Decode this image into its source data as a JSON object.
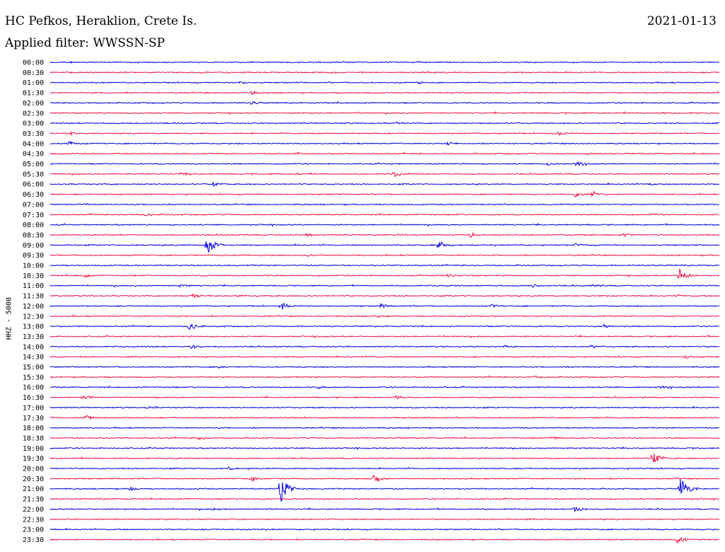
{
  "header": {
    "station": "HC Pefkos, Heraklion, Crete Is.",
    "date": "2021-01-13",
    "filter": "Applied filter: WWSSN-SP"
  },
  "channel_label": "HHZ - 5000",
  "colors": {
    "even_trace": "#0000dd",
    "odd_trace": "#ee1144"
  },
  "chart_data": {
    "type": "line",
    "title": "HC Pefkos, Heraklion, Crete Is.",
    "xlabel": "",
    "ylabel": "HHZ - 5000",
    "grid": false,
    "legend": "none",
    "row_labels": [
      "00:00",
      "00:30",
      "01:00",
      "01:30",
      "02:00",
      "02:30",
      "03:00",
      "03:30",
      "04:00",
      "04:30",
      "05:00",
      "05:30",
      "06:00",
      "06:30",
      "07:00",
      "07:30",
      "08:00",
      "08:30",
      "09:00",
      "09:30",
      "10:00",
      "10:30",
      "11:00",
      "11:30",
      "12:00",
      "12:30",
      "13:00",
      "13:30",
      "14:00",
      "14:30",
      "15:00",
      "15:30",
      "16:00",
      "16:30",
      "17:00",
      "17:30",
      "18:00",
      "18:30",
      "19:00",
      "19:30",
      "20:00",
      "20:30",
      "21:00",
      "21:30",
      "22:00",
      "22:30",
      "23:00",
      "23:30"
    ],
    "row_minutes": 30,
    "events": [
      {
        "row": "00:00",
        "minute": 0.8,
        "amp": 0.15
      },
      {
        "row": "01:00",
        "minute": 8.5,
        "amp": 0.25
      },
      {
        "row": "01:00",
        "minute": 16.5,
        "amp": 0.3
      },
      {
        "row": "01:30",
        "minute": 9.0,
        "amp": 0.35
      },
      {
        "row": "02:00",
        "minute": 9.0,
        "amp": 0.4
      },
      {
        "row": "02:30",
        "minute": 27.5,
        "amp": 0.25
      },
      {
        "row": "03:00",
        "minute": 15.5,
        "amp": 0.25
      },
      {
        "row": "03:30",
        "minute": 0.9,
        "amp": 0.45
      },
      {
        "row": "03:30",
        "minute": 22.8,
        "amp": 0.5
      },
      {
        "row": "04:00",
        "minute": 0.8,
        "amp": 0.5
      },
      {
        "row": "04:00",
        "minute": 17.8,
        "amp": 0.4
      },
      {
        "row": "04:30",
        "minute": 11.0,
        "amp": 0.3
      },
      {
        "row": "04:30",
        "minute": 24.0,
        "amp": 0.25
      },
      {
        "row": "05:00",
        "minute": 22.3,
        "amp": 0.45
      },
      {
        "row": "05:00",
        "minute": 23.6,
        "amp": 0.6
      },
      {
        "row": "05:30",
        "minute": 5.9,
        "amp": 0.45
      },
      {
        "row": "05:30",
        "minute": 11.0,
        "amp": 0.35
      },
      {
        "row": "05:30",
        "minute": 15.4,
        "amp": 0.6
      },
      {
        "row": "06:00",
        "minute": 7.3,
        "amp": 0.5
      },
      {
        "row": "06:00",
        "minute": 26.8,
        "amp": 0.3
      },
      {
        "row": "06:30",
        "minute": 23.5,
        "amp": 0.6
      },
      {
        "row": "06:30",
        "minute": 24.3,
        "amp": 0.75
      },
      {
        "row": "07:00",
        "minute": 1.5,
        "amp": 0.2
      },
      {
        "row": "07:30",
        "minute": 4.2,
        "amp": 0.35
      },
      {
        "row": "07:30",
        "minute": 27.0,
        "amp": 0.2
      },
      {
        "row": "08:30",
        "minute": 11.5,
        "amp": 0.35
      },
      {
        "row": "08:30",
        "minute": 18.8,
        "amp": 0.55
      },
      {
        "row": "08:30",
        "minute": 25.6,
        "amp": 0.45
      },
      {
        "row": "09:00",
        "minute": 7.0,
        "amp": 2.3
      },
      {
        "row": "09:00",
        "minute": 17.4,
        "amp": 1.2
      },
      {
        "row": "09:00",
        "minute": 23.5,
        "amp": 0.3
      },
      {
        "row": "09:30",
        "minute": 11.5,
        "amp": 0.4
      },
      {
        "row": "10:30",
        "minute": 1.5,
        "amp": 0.55
      },
      {
        "row": "10:30",
        "minute": 17.8,
        "amp": 0.4
      },
      {
        "row": "10:30",
        "minute": 28.2,
        "amp": 1.6
      },
      {
        "row": "11:00",
        "minute": 5.8,
        "amp": 0.35
      },
      {
        "row": "11:00",
        "minute": 21.6,
        "amp": 0.35
      },
      {
        "row": "11:00",
        "minute": 24.3,
        "amp": 0.3
      },
      {
        "row": "11:30",
        "minute": 6.4,
        "amp": 0.5
      },
      {
        "row": "11:30",
        "minute": 8.5,
        "amp": 0.35
      },
      {
        "row": "11:30",
        "minute": 28.0,
        "amp": 0.45
      },
      {
        "row": "12:00",
        "minute": 10.3,
        "amp": 1.1
      },
      {
        "row": "12:00",
        "minute": 14.8,
        "amp": 0.55
      },
      {
        "row": "12:00",
        "minute": 19.8,
        "amp": 0.4
      },
      {
        "row": "12:30",
        "minute": 14.6,
        "amp": 0.3
      },
      {
        "row": "13:00",
        "minute": 6.2,
        "amp": 0.95
      },
      {
        "row": "13:00",
        "minute": 24.8,
        "amp": 0.4
      },
      {
        "row": "14:00",
        "minute": 6.3,
        "amp": 0.5
      },
      {
        "row": "14:00",
        "minute": 20.3,
        "amp": 0.4
      },
      {
        "row": "14:00",
        "minute": 24.2,
        "amp": 0.4
      },
      {
        "row": "14:30",
        "minute": 28.5,
        "amp": 0.35
      },
      {
        "row": "15:00",
        "minute": 7.5,
        "amp": 0.3
      },
      {
        "row": "15:30",
        "minute": 21.6,
        "amp": 0.35
      },
      {
        "row": "16:00",
        "minute": 12.0,
        "amp": 0.45
      },
      {
        "row": "16:00",
        "minute": 27.4,
        "amp": 0.35
      },
      {
        "row": "16:30",
        "minute": 1.4,
        "amp": 0.75
      },
      {
        "row": "16:30",
        "minute": 15.5,
        "amp": 0.45
      },
      {
        "row": "17:00",
        "minute": 4.4,
        "amp": 0.3
      },
      {
        "row": "17:30",
        "minute": 1.6,
        "amp": 0.5
      },
      {
        "row": "18:30",
        "minute": 6.6,
        "amp": 0.45
      },
      {
        "row": "18:30",
        "minute": 22.4,
        "amp": 0.5
      },
      {
        "row": "19:30",
        "minute": 27.0,
        "amp": 1.7
      },
      {
        "row": "20:00",
        "minute": 8.0,
        "amp": 0.45
      },
      {
        "row": "20:30",
        "minute": 9.0,
        "amp": 0.7
      },
      {
        "row": "20:30",
        "minute": 14.5,
        "amp": 1.0
      },
      {
        "row": "21:00",
        "minute": 3.6,
        "amp": 0.5
      },
      {
        "row": "21:00",
        "minute": 10.3,
        "amp": 3.2
      },
      {
        "row": "21:00",
        "minute": 28.2,
        "amp": 3.0
      },
      {
        "row": "22:00",
        "minute": 7.3,
        "amp": 0.4
      },
      {
        "row": "22:00",
        "minute": 23.5,
        "amp": 0.8
      },
      {
        "row": "23:30",
        "minute": 28.1,
        "amp": 0.7
      }
    ]
  }
}
